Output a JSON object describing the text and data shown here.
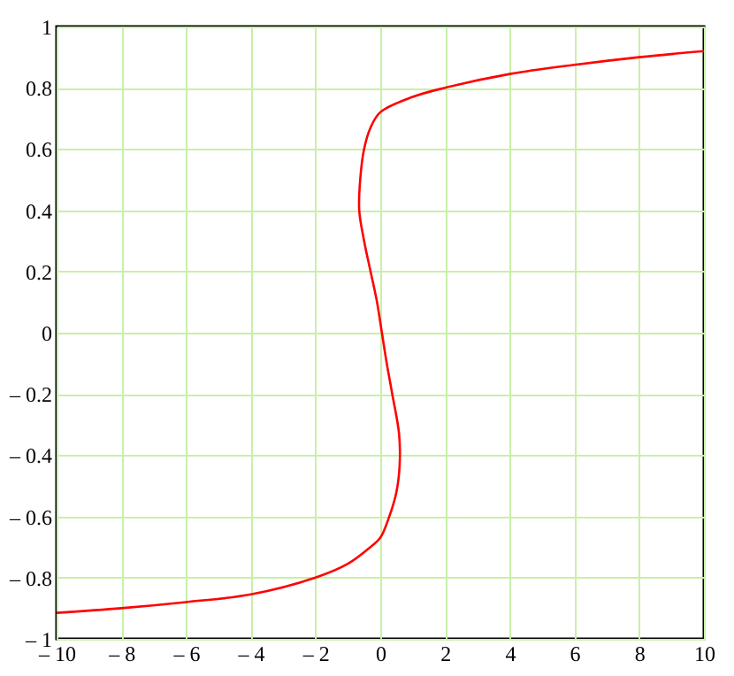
{
  "chart_data": {
    "type": "line",
    "x": [
      -10,
      -8,
      -6,
      -4,
      -2,
      -1,
      -0.3,
      0,
      0.28,
      0.5,
      0.6,
      0.58,
      0.37,
      0.2,
      0.05,
      -0.1,
      -0.3,
      -0.5,
      -0.65,
      -0.62,
      -0.5,
      -0.3,
      0,
      1,
      2,
      4,
      6,
      8,
      10
    ],
    "series": [
      {
        "color": "#ff0000",
        "values": [
          -0.915,
          -0.9,
          -0.88,
          -0.855,
          -0.8,
          -0.755,
          -0.7,
          -0.67,
          -0.6,
          -0.52,
          -0.43,
          -0.33,
          -0.2,
          -0.1,
          0,
          0.1,
          0.2,
          0.3,
          0.4,
          0.5,
          0.6,
          0.67,
          0.72,
          0.77,
          0.8,
          0.845,
          0.875,
          0.9,
          0.92
        ]
      }
    ],
    "xlim": [
      -10,
      10
    ],
    "xticks": [
      {
        "value": -10,
        "label": "– 10"
      },
      {
        "value": -8,
        "label": "– 8"
      },
      {
        "value": -6,
        "label": "– 6"
      },
      {
        "value": -4,
        "label": "– 4"
      },
      {
        "value": -2,
        "label": "– 2"
      },
      0,
      2,
      4,
      6,
      8,
      10
    ],
    "ylim": [
      -1,
      1
    ],
    "yticks": [
      {
        "value": -1,
        "label": "– 1"
      },
      {
        "value": -0.8,
        "label": "– 0.8"
      },
      {
        "value": -0.6,
        "label": "– 0.6"
      },
      {
        "value": -0.4,
        "label": "– 0.4"
      },
      {
        "value": -0.2,
        "label": "– 0.2"
      },
      0,
      0.2,
      0.4,
      0.6,
      0.8,
      1
    ],
    "grid": true,
    "marker": "none",
    "line_style": "solid"
  }
}
